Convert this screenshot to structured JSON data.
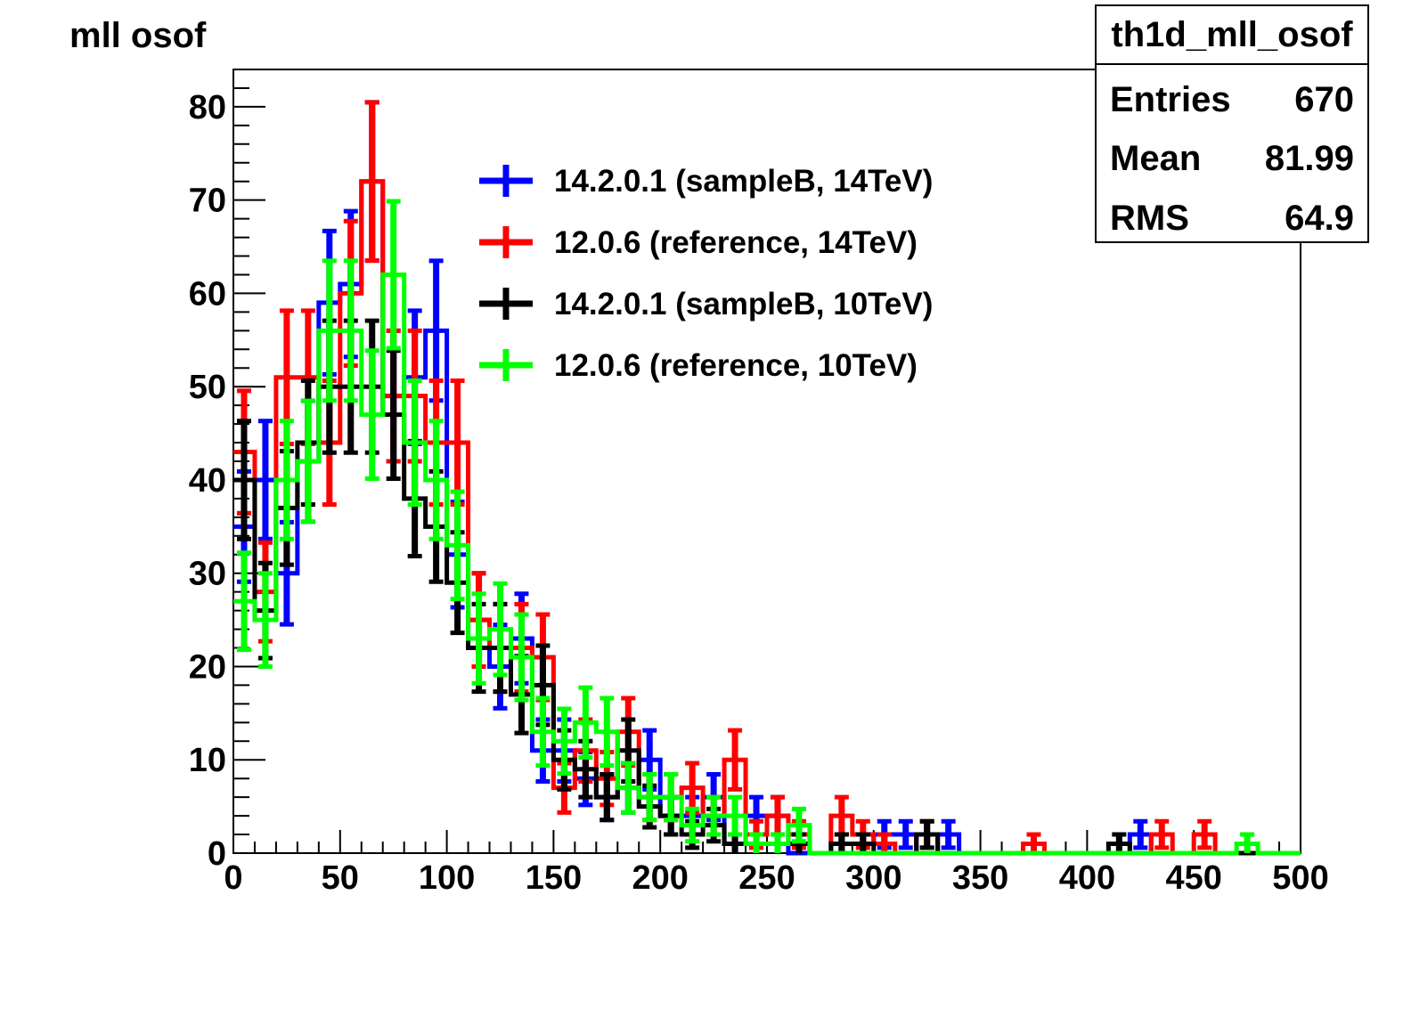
{
  "chart_data": {
    "type": "histogram",
    "title": "mll osof",
    "xlim": [
      0,
      500
    ],
    "ylim": [
      0,
      84
    ],
    "bin_width": 10,
    "x_ticks": [
      0,
      50,
      100,
      150,
      200,
      250,
      300,
      350,
      400,
      450,
      500
    ],
    "y_ticks": [
      0,
      10,
      20,
      30,
      40,
      50,
      60,
      70,
      80
    ],
    "stats_box": {
      "title": "th1d_mll_osof",
      "rows": [
        {
          "label": "Entries",
          "value": "670"
        },
        {
          "label": "Mean",
          "value": "81.99"
        },
        {
          "label": "RMS",
          "value": "64.9"
        }
      ]
    },
    "legend_position": "top-center",
    "series": [
      {
        "name": "14.2.0.1 (sampleB, 14TeV)",
        "color": "#0000ff",
        "values": [
          35,
          40,
          30,
          42,
          59,
          61,
          72,
          49,
          51,
          56,
          32,
          25,
          20,
          23,
          11,
          11,
          8,
          6,
          7,
          10,
          4,
          4,
          6,
          1,
          4,
          4,
          0,
          0,
          1,
          1,
          2,
          2,
          0,
          2,
          0,
          0,
          0,
          0,
          0,
          0,
          0,
          0,
          2,
          0,
          0,
          0,
          0,
          0,
          0,
          0
        ]
      },
      {
        "name": "12.0.6 (reference, 14TeV)",
        "color": "#ff0000",
        "values": [
          43,
          28,
          51,
          51,
          44,
          60,
          72,
          49,
          49,
          44,
          44,
          25,
          22,
          22,
          21,
          7,
          11,
          8,
          13,
          6,
          6,
          7,
          4,
          10,
          2,
          4,
          2,
          0,
          4,
          2,
          1,
          0,
          2,
          0,
          0,
          0,
          0,
          1,
          0,
          0,
          0,
          0,
          0,
          2,
          0,
          2,
          0,
          0,
          0,
          0
        ]
      },
      {
        "name": "14.2.0.1 (sampleB, 10TeV)",
        "color": "#000000",
        "values": [
          40,
          26,
          37,
          44,
          50,
          50,
          50,
          47,
          38,
          35,
          29,
          22,
          22,
          17,
          18,
          10,
          9,
          6,
          11,
          5,
          4,
          2,
          3,
          1,
          1,
          1,
          1,
          0,
          1,
          1,
          0,
          0,
          2,
          0,
          0,
          0,
          0,
          0,
          0,
          0,
          0,
          1,
          0,
          0,
          0,
          0,
          0,
          0,
          0,
          0
        ]
      },
      {
        "name": "12.0.6 (reference, 10TeV)",
        "color": "#00ff00",
        "values": [
          27,
          25,
          40,
          42,
          56,
          56,
          47,
          62,
          44,
          40,
          33,
          23,
          24,
          21,
          13,
          12,
          14,
          13,
          7,
          6,
          6,
          3,
          4,
          4,
          1,
          1,
          3,
          0,
          0,
          0,
          0,
          0,
          0,
          0,
          0,
          0,
          0,
          0,
          0,
          0,
          0,
          0,
          0,
          0,
          0,
          0,
          0,
          1,
          0,
          0
        ]
      }
    ]
  }
}
